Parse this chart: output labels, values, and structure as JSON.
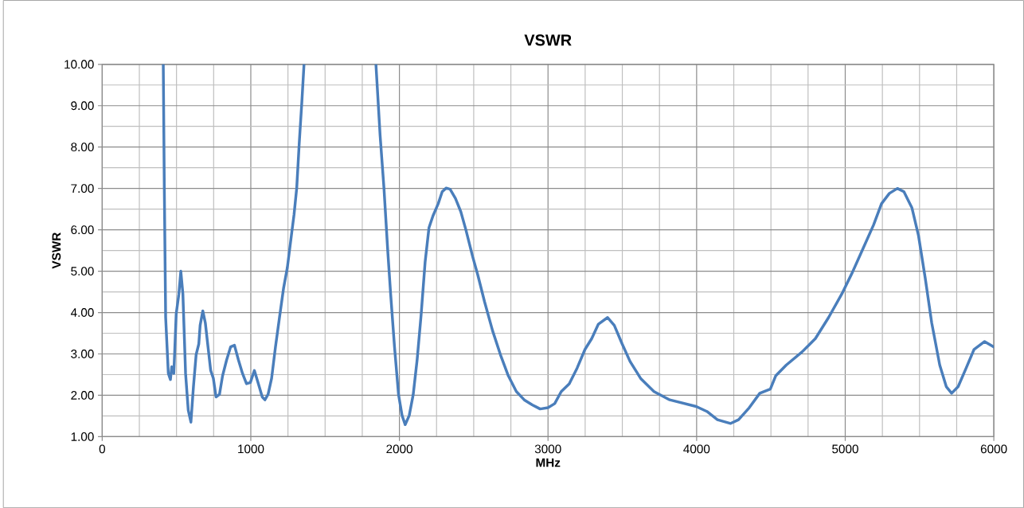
{
  "chart_data": {
    "type": "line",
    "title": "VSWR",
    "xlabel": "MHz",
    "ylabel": "VSWR",
    "xlim": [
      0,
      6000
    ],
    "ylim": [
      1,
      10
    ],
    "grid": true,
    "marker": "none",
    "line_style": "solid",
    "xticks": [
      0,
      {
        "value": 250,
        "label": null
      },
      {
        "value": 500,
        "label": null
      },
      {
        "value": 750,
        "label": null
      },
      1000,
      {
        "value": 1250,
        "label": null
      },
      {
        "value": 1500,
        "label": null
      },
      {
        "value": 1750,
        "label": null
      },
      2000,
      {
        "value": 2250,
        "label": null
      },
      {
        "value": 2500,
        "label": null
      },
      {
        "value": 2750,
        "label": null
      },
      3000,
      {
        "value": 3250,
        "label": null
      },
      {
        "value": 3500,
        "label": null
      },
      {
        "value": 3750,
        "label": null
      },
      4000,
      {
        "value": 4250,
        "label": null
      },
      {
        "value": 4500,
        "label": null
      },
      {
        "value": 4750,
        "label": null
      },
      5000,
      {
        "value": 5250,
        "label": null
      },
      {
        "value": 5500,
        "label": null
      },
      {
        "value": 5750,
        "label": null
      },
      6000
    ],
    "yticks": [
      {
        "value": 1,
        "label": "1.00"
      },
      {
        "value": 1.5,
        "label": null
      },
      {
        "value": 2,
        "label": "2.00"
      },
      {
        "value": 2.5,
        "label": null
      },
      {
        "value": 3,
        "label": "3.00"
      },
      {
        "value": 3.5,
        "label": null
      },
      {
        "value": 4,
        "label": "4.00"
      },
      {
        "value": 4.5,
        "label": null
      },
      {
        "value": 5,
        "label": "5.00"
      },
      {
        "value": 5.5,
        "label": null
      },
      {
        "value": 6,
        "label": "6.00"
      },
      {
        "value": 6.5,
        "label": null
      },
      {
        "value": 7,
        "label": "7.00"
      },
      {
        "value": 7.5,
        "label": null
      },
      {
        "value": 8,
        "label": "8.00"
      },
      {
        "value": 8.5,
        "label": null
      },
      {
        "value": 9,
        "label": "9.00"
      },
      {
        "value": 9.5,
        "label": null
      },
      {
        "value": 10,
        "label": "10.00"
      }
    ],
    "series": [
      {
        "color": "#4a7ebb",
        "x": [
          411,
          418,
          427,
          445,
          459,
          468,
          482,
          498,
          516,
          529,
          543,
          561,
          579,
          597,
          614,
          632,
          650,
          659,
          677,
          694,
          712,
          730,
          748,
          766,
          789,
          810,
          837,
          864,
          890,
          917,
          944,
          971,
          997,
          1024,
          1051,
          1077,
          1095,
          1116,
          1140,
          1166,
          1193,
          1220,
          1246,
          1273,
          1291,
          1309,
          1326,
          1344,
          1358,
          1600,
          1842,
          1870,
          1896,
          1923,
          1941,
          1967,
          1994,
          2018,
          2039,
          2066,
          2093,
          2119,
          2146,
          2173,
          2199,
          2226,
          2261,
          2288,
          2315,
          2341,
          2377,
          2413,
          2448,
          2493,
          2528,
          2573,
          2627,
          2680,
          2733,
          2787,
          2840,
          2894,
          2947,
          3000,
          3045,
          3089,
          3143,
          3196,
          3249,
          3294,
          3339,
          3401,
          3446,
          3499,
          3552,
          3623,
          3713,
          3819,
          3997,
          4069,
          4140,
          4229,
          4282,
          4354,
          4425,
          4496,
          4532,
          4603,
          4710,
          4799,
          4888,
          4977,
          5048,
          5119,
          5191,
          5244,
          5297,
          5351,
          5395,
          5449,
          5493,
          5538,
          5582,
          5636,
          5680,
          5716,
          5760,
          5814,
          5867,
          5938,
          6000
        ],
        "values": [
          10,
          7.01,
          3.88,
          2.53,
          2.38,
          2.69,
          2.53,
          3.97,
          4.45,
          5.0,
          4.45,
          2.53,
          1.64,
          1.35,
          2.21,
          2.98,
          3.24,
          3.69,
          4.04,
          3.75,
          3.17,
          2.6,
          2.41,
          1.96,
          2.02,
          2.47,
          2.85,
          3.17,
          3.21,
          2.85,
          2.53,
          2.28,
          2.31,
          2.6,
          2.28,
          1.96,
          1.89,
          2.02,
          2.41,
          3.17,
          3.88,
          4.58,
          5.09,
          5.86,
          6.37,
          7.01,
          8.1,
          9.12,
          10,
          null,
          10,
          8.29,
          7.01,
          5.41,
          4.45,
          3.17,
          2.02,
          1.51,
          1.29,
          1.51,
          2.02,
          2.85,
          3.94,
          5.22,
          6.05,
          6.34,
          6.63,
          6.92,
          7.01,
          6.98,
          6.76,
          6.44,
          5.99,
          5.35,
          4.9,
          4.26,
          3.56,
          2.98,
          2.47,
          2.09,
          1.89,
          1.77,
          1.67,
          1.7,
          1.8,
          2.09,
          2.28,
          2.66,
          3.11,
          3.37,
          3.72,
          3.88,
          3.69,
          3.24,
          2.82,
          2.41,
          2.09,
          1.89,
          1.73,
          1.61,
          1.41,
          1.32,
          1.41,
          1.7,
          2.05,
          2.15,
          2.47,
          2.73,
          3.05,
          3.37,
          3.88,
          4.45,
          4.97,
          5.54,
          6.12,
          6.63,
          6.88,
          7.0,
          6.92,
          6.53,
          5.86,
          4.84,
          3.75,
          2.73,
          2.21,
          2.05,
          2.21,
          2.66,
          3.11,
          3.3,
          3.17
        ]
      }
    ]
  }
}
